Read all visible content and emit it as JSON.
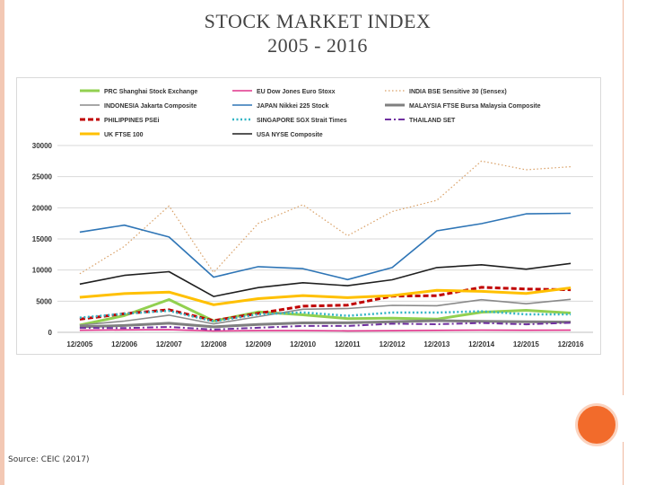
{
  "slide": {
    "title_line1": "STOCK MARKET INDEX",
    "title_line2": "2005 - 2016",
    "source": "Source: CEIC (2017)"
  },
  "chart_data": {
    "type": "line",
    "categories": [
      "12/2005",
      "12/2006",
      "12/2007",
      "12/2008",
      "12/2009",
      "12/2010",
      "12/2011",
      "12/2012",
      "12/2013",
      "12/2014",
      "12/2015",
      "12/2016"
    ],
    "ylim": [
      0,
      30000
    ],
    "yticks": [
      0,
      5000,
      10000,
      15000,
      20000,
      25000,
      30000
    ],
    "grid": true,
    "legend_position": "top",
    "series": [
      {
        "name": "PRC Shanghai Stock Exchange",
        "color": "#92d050",
        "style": "solid-thick",
        "values": [
          1160,
          2680,
          5260,
          1820,
          3280,
          2810,
          2200,
          2270,
          2120,
          3230,
          3540,
          3100
        ]
      },
      {
        "name": "EU Dow Jones Euro Stoxx",
        "color": "#e0338a",
        "style": "solid",
        "values": [
          330,
          390,
          420,
          220,
          280,
          270,
          230,
          260,
          320,
          340,
          330,
          350
        ]
      },
      {
        "name": "INDIA BSE Sensitive 30 (Sensex)",
        "color": "#d9a066",
        "style": "dotted",
        "values": [
          9400,
          13800,
          20300,
          9600,
          17500,
          20500,
          15500,
          19400,
          21200,
          27500,
          26100,
          26600
        ]
      },
      {
        "name": "INDONESIA Jakarta Composite",
        "color": "#8a8a8a",
        "style": "solid",
        "values": [
          1160,
          1810,
          2750,
          1350,
          2530,
          3700,
          3820,
          4320,
          4270,
          5230,
          4590,
          5300
        ]
      },
      {
        "name": "JAPAN Nikkei 225 Stock",
        "color": "#2e75b6",
        "style": "solid",
        "values": [
          16100,
          17200,
          15300,
          8860,
          10550,
          10230,
          8460,
          10400,
          16300,
          17450,
          19030,
          19110
        ]
      },
      {
        "name": "MALAYSIA FTSE Bursa Malaysia Composite",
        "color": "#7f7f7f",
        "style": "solid-thick",
        "values": [
          900,
          1100,
          1450,
          880,
          1270,
          1520,
          1530,
          1690,
          1870,
          1760,
          1690,
          1640
        ]
      },
      {
        "name": "PHILIPPINES PSEi",
        "color": "#c00000",
        "style": "dashed-thick",
        "values": [
          2100,
          2980,
          3620,
          1870,
          3050,
          4200,
          4370,
          5810,
          5890,
          7230,
          6950,
          6840
        ]
      },
      {
        "name": "SINGAPORE SGX Strait Times",
        "color": "#33b5c5",
        "style": "dotted-thick",
        "values": [
          2350,
          2990,
          3450,
          1760,
          2900,
          3190,
          2650,
          3170,
          3170,
          3370,
          2880,
          2880
        ]
      },
      {
        "name": "THAILAND SET",
        "color": "#7030a0",
        "style": "dashdot",
        "values": [
          710,
          680,
          860,
          450,
          730,
          1030,
          1030,
          1390,
          1300,
          1500,
          1290,
          1540
        ]
      },
      {
        "name": "UK FTSE 100",
        "color": "#ffc000",
        "style": "solid-thick",
        "values": [
          5620,
          6220,
          6460,
          4430,
          5410,
          5900,
          5570,
          5900,
          6750,
          6570,
          6240,
          7140
        ]
      },
      {
        "name": "USA NYSE Composite",
        "color": "#1f1f1f",
        "style": "solid",
        "values": [
          7750,
          9140,
          9740,
          5760,
          7180,
          7960,
          7480,
          8440,
          10400,
          10840,
          10140,
          11060
        ]
      }
    ]
  }
}
